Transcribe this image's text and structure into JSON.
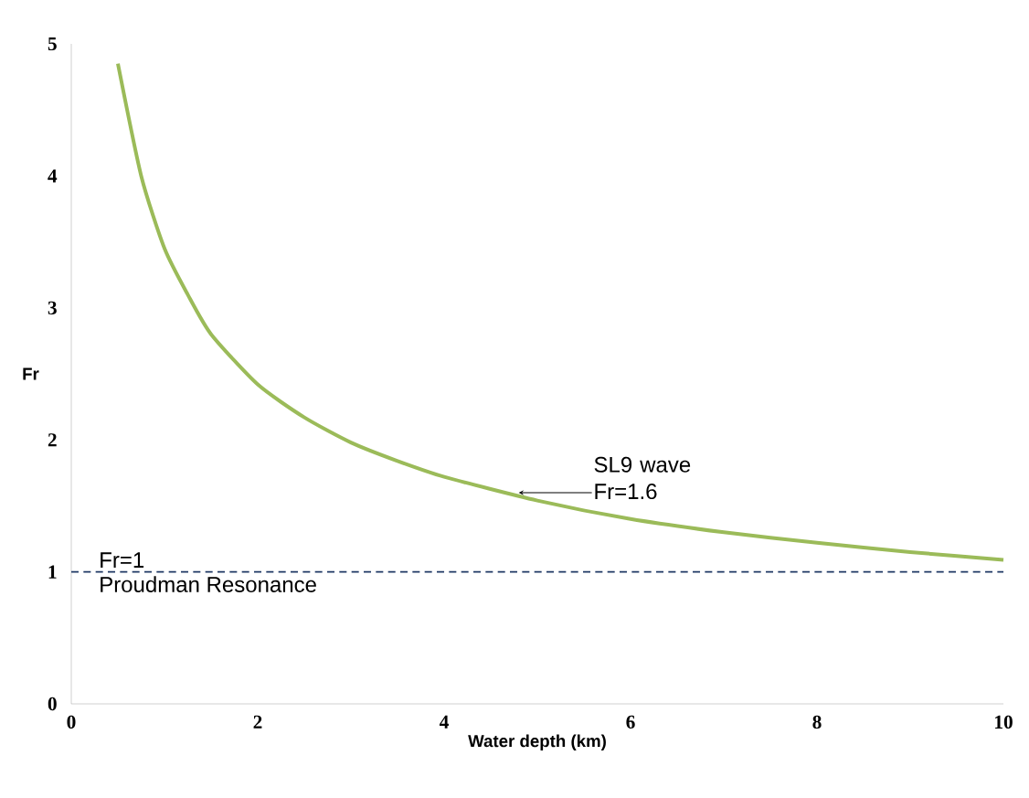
{
  "chart_data": {
    "type": "line",
    "xlabel": "Water depth (km)",
    "ylabel": "Fr",
    "x": [
      0.5,
      0.75,
      1,
      1.25,
      1.5,
      2,
      2.5,
      3,
      3.5,
      4,
      5,
      6,
      7,
      8,
      9,
      10
    ],
    "series": [
      {
        "color": "#9bbb59",
        "values": [
          4.85,
          4.0,
          3.45,
          3.1,
          2.8,
          2.42,
          2.17,
          1.98,
          1.84,
          1.72,
          1.54,
          1.4,
          1.3,
          1.22,
          1.15,
          1.09
        ]
      }
    ],
    "xlim": [
      0,
      10
    ],
    "ylim": [
      0,
      5
    ],
    "xticks": [
      0,
      2,
      4,
      6,
      8,
      10
    ],
    "yticks": [
      0,
      1,
      2,
      3,
      4,
      5
    ],
    "grid": false,
    "marker": "none",
    "line_style": "solid",
    "ref_lines": [
      {
        "axis": "y",
        "value": 1,
        "label": "Fr=1",
        "color": "#1f3864",
        "line_style": "dashed"
      }
    ],
    "annotations": [
      {
        "text": "SL9 wave Fr=1.6",
        "x": 4.8,
        "y": 1.6
      },
      "Proudman Resonance"
    ]
  }
}
